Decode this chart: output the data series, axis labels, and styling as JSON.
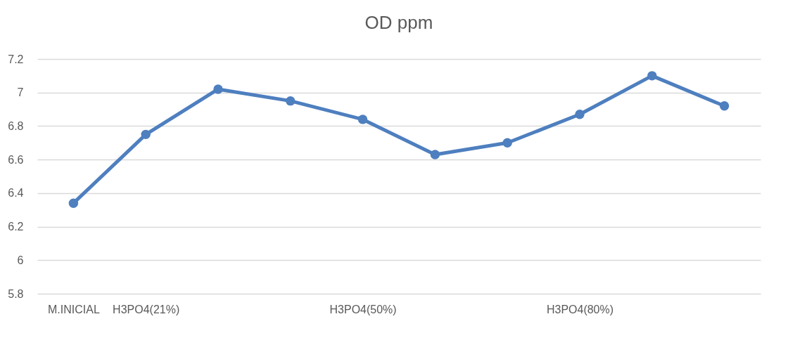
{
  "chart_data": {
    "type": "line",
    "title": "OD ppm",
    "categories": [
      "M.INICIAL",
      "H3PO4(21%)",
      null,
      null,
      "H3PO4(50%)",
      null,
      null,
      "H3PO4(80%)",
      null,
      null
    ],
    "series": [
      {
        "color": "#4e7fbf",
        "values": [
          6.34,
          6.75,
          7.02,
          6.95,
          6.84,
          6.63,
          6.7,
          6.87,
          7.1,
          6.92
        ]
      }
    ],
    "ylim": [
      5.8,
      7.2
    ],
    "yticks": [
      5.8,
      6,
      6.2,
      6.4,
      6.6,
      6.8,
      7,
      7.2
    ],
    "grid": "y",
    "legend": false,
    "marker": "circle",
    "line_style": "solid"
  }
}
